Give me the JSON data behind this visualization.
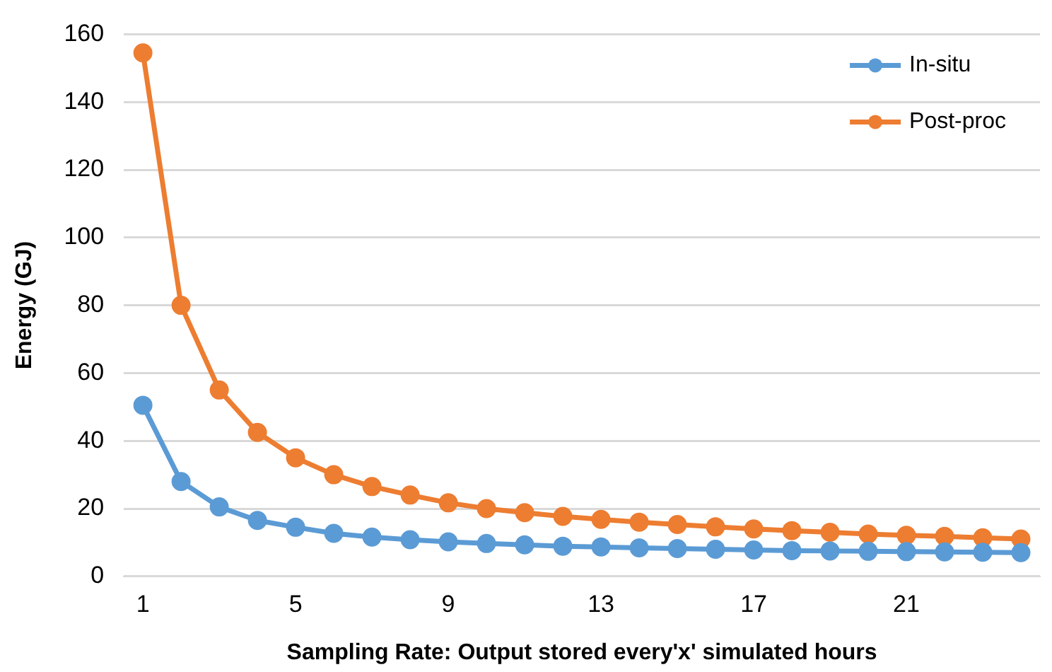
{
  "chart_data": {
    "type": "line",
    "xlabel": "Sampling Rate: Output stored every'x' simulated hours",
    "ylabel": "Energy (GJ)",
    "categories": [
      "1",
      null,
      null,
      null,
      "5",
      null,
      null,
      null,
      "9",
      null,
      null,
      null,
      "13",
      null,
      null,
      null,
      "17",
      null,
      null,
      null,
      "21",
      null,
      null,
      null
    ],
    "series": [
      {
        "name": "In-situ",
        "color": "#5b9bd5",
        "values": [
          50.5,
          28,
          20.5,
          16.5,
          14.5,
          12.7,
          11.6,
          10.8,
          10.2,
          9.7,
          9.3,
          8.9,
          8.7,
          8.4,
          8.2,
          8,
          7.8,
          7.6,
          7.5,
          7.4,
          7.3,
          7.2,
          7.1,
          7
        ]
      },
      {
        "name": "Post-proc",
        "color": "#ed7d31",
        "values": [
          154.5,
          80,
          55,
          42.5,
          35,
          30,
          26.5,
          24,
          21.7,
          20,
          18.8,
          17.7,
          16.8,
          16,
          15.3,
          14.6,
          14,
          13.5,
          13,
          12.5,
          12.1,
          11.8,
          11.4,
          11
        ]
      }
    ],
    "ylim": [
      0,
      160
    ],
    "yticks": [
      0,
      20,
      40,
      60,
      80,
      100,
      120,
      140,
      160
    ],
    "grid": "y",
    "legend": "top right",
    "marker": "circle",
    "line_style": "solid"
  }
}
